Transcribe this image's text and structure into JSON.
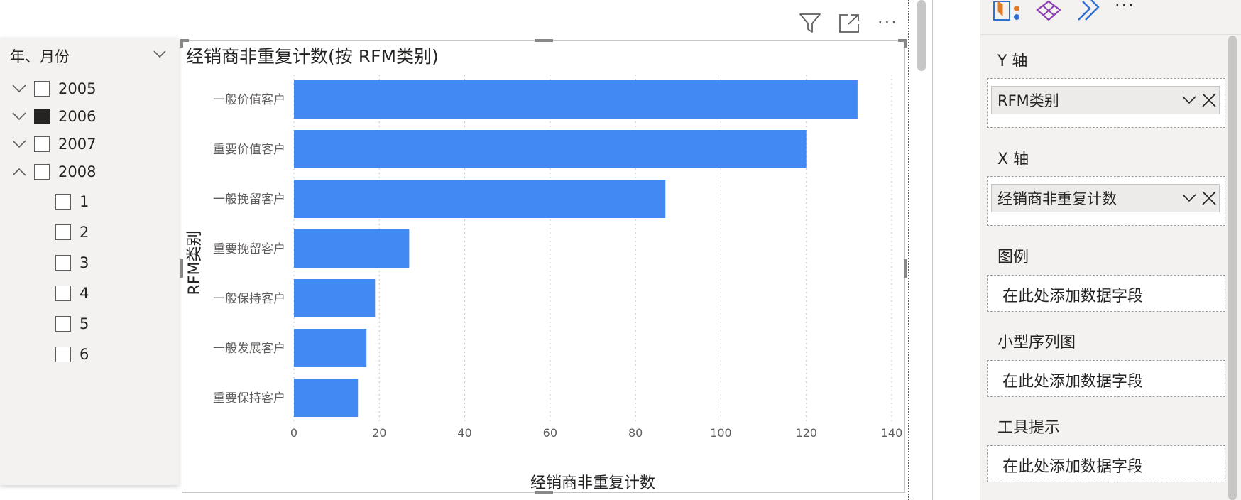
{
  "slicer": {
    "title": "年、月份",
    "years": [
      {
        "label": "2005",
        "expanded": false,
        "checked": false
      },
      {
        "label": "2006",
        "expanded": false,
        "checked": true
      },
      {
        "label": "2007",
        "expanded": false,
        "checked": false
      },
      {
        "label": "2008",
        "expanded": true,
        "checked": false
      }
    ],
    "months": [
      "1",
      "2",
      "3",
      "4",
      "5",
      "6"
    ]
  },
  "chart": {
    "title": "经销商非重复计数(按 RFM类别)"
  },
  "chart_data": {
    "type": "bar",
    "orientation": "horizontal",
    "title": "经销商非重复计数(按 RFM类别)",
    "xlabel": "经销商非重复计数",
    "ylabel": "RFM类别",
    "categories": [
      "一般价值客户",
      "重要价值客户",
      "一般挽留客户",
      "重要挽留客户",
      "一般保持客户",
      "一般发展客户",
      "重要保持客户"
    ],
    "values": [
      132,
      120,
      87,
      27,
      19,
      17,
      15
    ],
    "xlim": [
      0,
      140
    ],
    "xticks": [
      "0",
      "20",
      "40",
      "60",
      "80",
      "100",
      "120",
      "140"
    ],
    "grid": true,
    "bar_color": "#4289f4"
  },
  "pane": {
    "wells": [
      {
        "label": "Y 轴",
        "field": "RFM类别"
      },
      {
        "label": "X 轴",
        "field": "经销商非重复计数"
      },
      {
        "label": "图例",
        "placeholder": "在此处添加数据字段"
      },
      {
        "label": "小型序列图",
        "placeholder": "在此处添加数据字段"
      },
      {
        "label": "工具提示",
        "placeholder": "在此处添加数据字段"
      }
    ],
    "more_label": "···"
  },
  "visual_header": {
    "more_label": "···"
  },
  "colors": {
    "bar": "#4289f4",
    "accent_purple": "#8f3fb6",
    "accent_blue": "#2e6fd1",
    "accent_orange": "#e07b26"
  },
  "icons": [
    "filter-icon",
    "focus-mode-icon",
    "more-options-icon",
    "chevron-down-icon",
    "chevron-up-icon",
    "close-icon",
    "build-visual-icon",
    "format-visual-icon",
    "analytics-icon"
  ]
}
